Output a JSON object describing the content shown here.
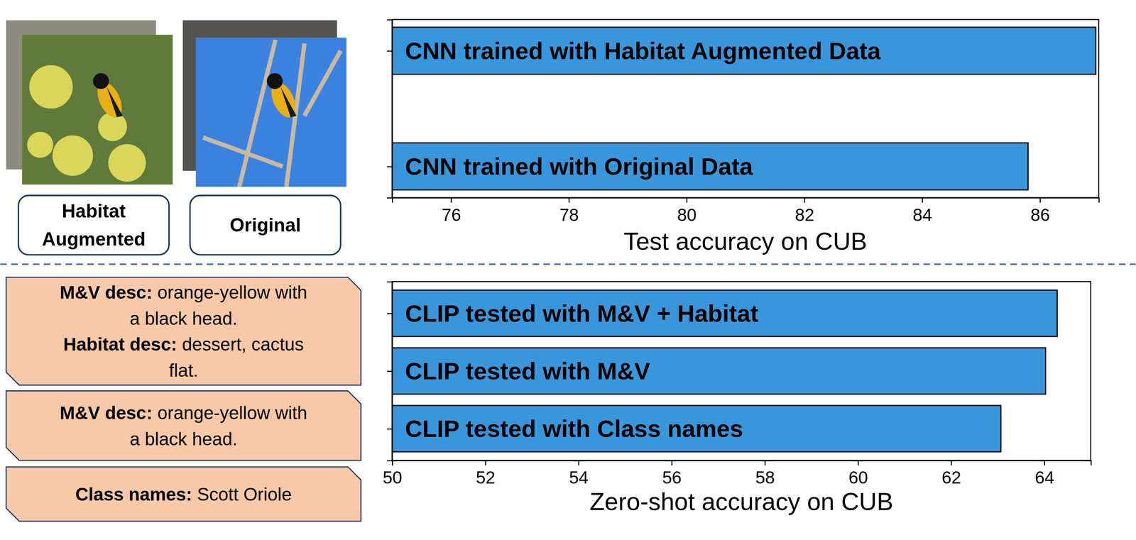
{
  "chart_data": [
    {
      "type": "bar",
      "orientation": "horizontal",
      "categories": [
        "CNN trained with Habitat Augmented Data",
        "CNN trained with Original Data"
      ],
      "values": [
        86.95,
        85.8
      ],
      "color": "#3a96db",
      "xlim": [
        75,
        87
      ],
      "xticks": [
        76,
        78,
        80,
        82,
        84,
        86
      ],
      "xlabel": "Test accuracy on CUB",
      "tick_labels": "x"
    },
    {
      "type": "bar",
      "orientation": "horizontal",
      "categories": [
        "CLIP tested with M&V + Habitat",
        "CLIP tested with M&V",
        "CLIP tested with Class names"
      ],
      "values": [
        64.28,
        64.03,
        63.07
      ],
      "color": "#3a96db",
      "xlim": [
        50,
        65
      ],
      "xticks": [
        50,
        52,
        54,
        56,
        58,
        60,
        62,
        64
      ],
      "xlabel": "Zero-shot accuracy on CUB",
      "tick_labels": "x"
    }
  ],
  "images": [
    {
      "caption": [
        "Habitat",
        "Augmented"
      ]
    },
    {
      "caption": [
        "Original"
      ]
    }
  ],
  "descriptions": [
    {
      "entries": [
        {
          "label": "M&V desc:",
          "lines": [
            "orange-yellow with",
            "a black head."
          ]
        },
        {
          "label": "Habitat desc:",
          "lines": [
            "dessert, cactus",
            "flat."
          ]
        }
      ]
    },
    {
      "entries": [
        {
          "label": "M&V desc:",
          "lines": [
            "orange-yellow with",
            "a black head."
          ]
        }
      ]
    },
    {
      "entries": [
        {
          "label": "Class names:",
          "lines": [
            "Scott Oriole"
          ]
        }
      ]
    }
  ]
}
